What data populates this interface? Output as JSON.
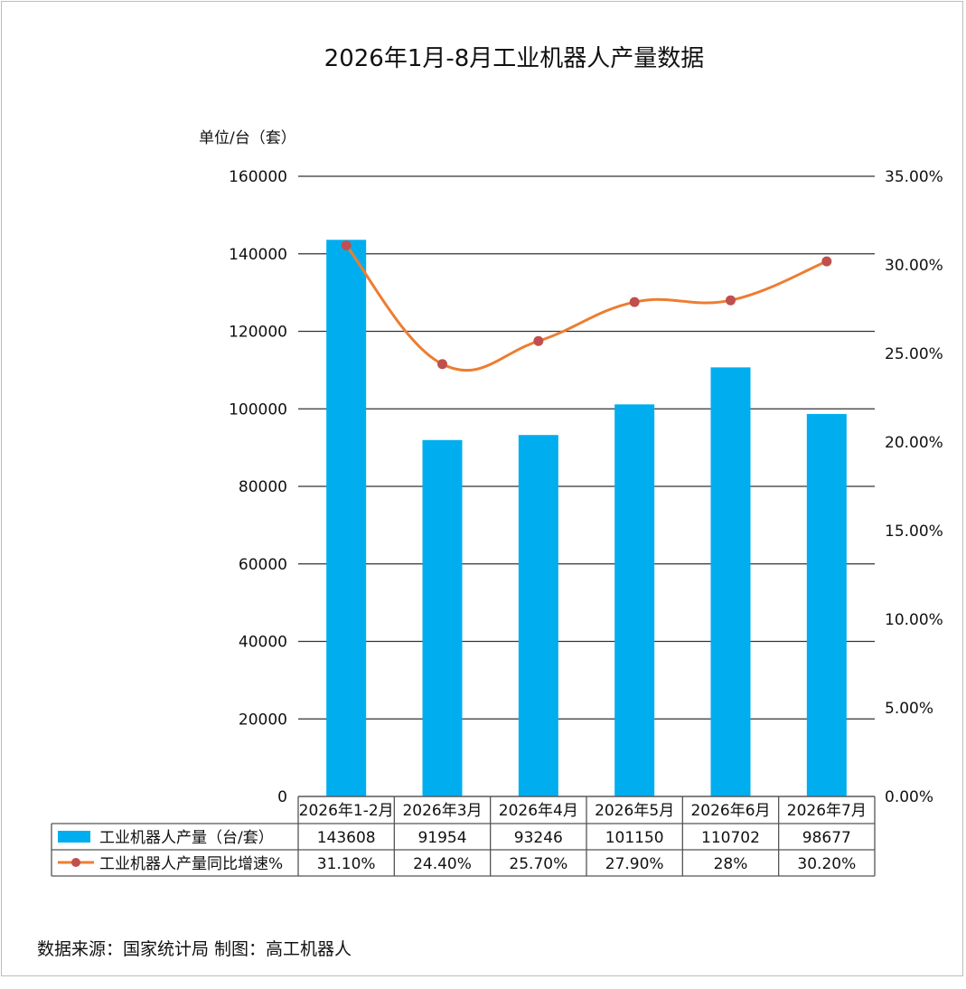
{
  "chart_data": {
    "type": "bar",
    "title": "2026年1月-8月工业机器人产量数据",
    "ylabel": "单位/台（套）",
    "categories": [
      "2026年1-2月",
      "2026年3月",
      "2026年4月",
      "2026年5月",
      "2026年6月",
      "2026年7月"
    ],
    "ylim": [
      0,
      160000
    ],
    "y_ticks": [
      "0",
      "20000",
      "40000",
      "60000",
      "80000",
      "100000",
      "120000",
      "140000",
      "160000"
    ],
    "y2lim": [
      0,
      35
    ],
    "y2_ticks": [
      "0.00%",
      "5.00%",
      "10.00%",
      "15.00%",
      "20.00%",
      "25.00%",
      "30.00%",
      "35.00%"
    ],
    "grid": true,
    "legend": "table-bottom",
    "series": [
      {
        "name": "工业机器人产量（台/套）",
        "type": "bar",
        "axis": "left",
        "color": "#00AEEF",
        "values": [
          143608,
          91954,
          93246,
          101150,
          110702,
          98677
        ],
        "labels": [
          "143608",
          "91954",
          "93246",
          "101150",
          "110702",
          "98677"
        ]
      },
      {
        "name": "工业机器人产量同比增速%",
        "type": "line",
        "axis": "right",
        "color": "#ED7D31",
        "marker_color": "#C0504D",
        "values": [
          31.1,
          24.4,
          25.7,
          27.9,
          28,
          30.2
        ],
        "labels": [
          "31.10%",
          "24.40%",
          "25.70%",
          "27.90%",
          "28%",
          "30.20%"
        ]
      }
    ]
  },
  "footer": {
    "source": "数据来源：国家统计局 制图：高工机器人"
  }
}
